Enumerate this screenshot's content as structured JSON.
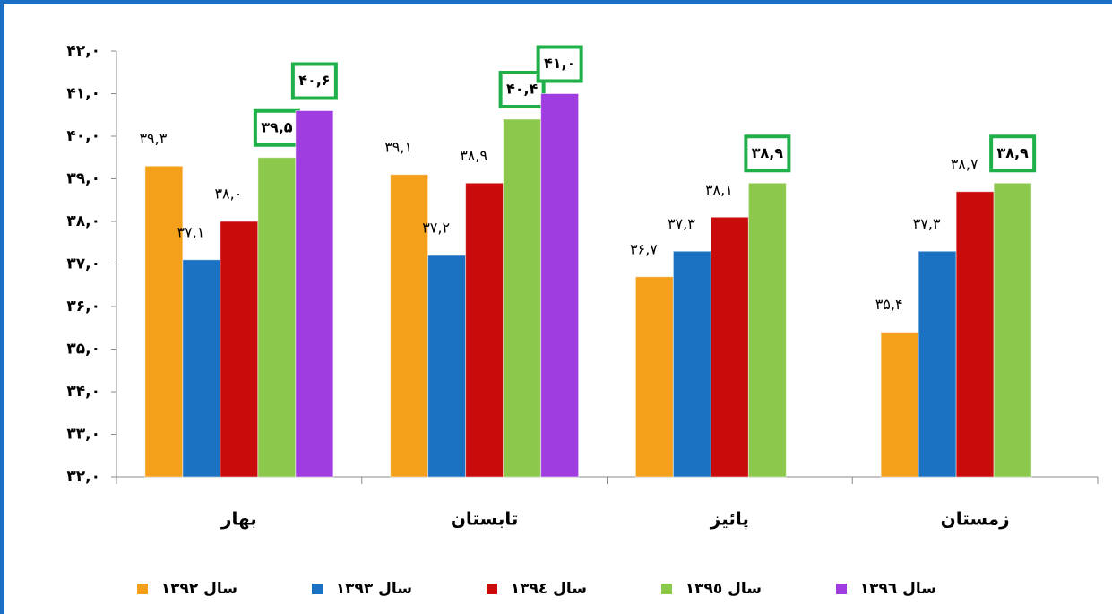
{
  "chart_data": {
    "type": "bar",
    "categories": [
      "بهار",
      "تابستان",
      "پائیز",
      "زمستان"
    ],
    "series": [
      {
        "name": "سال ١٣٩٢",
        "color": "#f5a01a",
        "values": [
          39.3,
          39.1,
          36.7,
          35.4
        ],
        "value_labels": [
          "۳۹,۳",
          "۳۹,۱",
          "۳۶,۷",
          "۳۵,۴"
        ]
      },
      {
        "name": "سال ١٣٩٣",
        "color": "#1b72c2",
        "values": [
          37.1,
          37.2,
          37.3,
          37.3
        ],
        "value_labels": [
          "۳۷,۱",
          "۳۷,۲",
          "۳۷,۳",
          "۳۷,۳"
        ]
      },
      {
        "name": "سال ١٣٩٤",
        "color": "#c90b0b",
        "values": [
          38.0,
          38.9,
          38.1,
          38.7
        ],
        "value_labels": [
          "۳۸,۰",
          "۳۸,۹",
          "۳۸,۱",
          "۳۸,۷"
        ]
      },
      {
        "name": "سال ١٣٩٥",
        "color": "#8cc84b",
        "values": [
          39.5,
          40.4,
          38.9,
          38.9
        ],
        "value_labels": [
          "۳۹,۵",
          "۴۰,۴",
          "۳۸,۹",
          "۳۸,۹"
        ],
        "boxed": true
      },
      {
        "name": "سال ١٣٩٦",
        "color": "#a03de0",
        "values": [
          40.6,
          41.0,
          null,
          null
        ],
        "value_labels": [
          "۴۰,۶",
          "۴۱,۰",
          null,
          null
        ],
        "boxed": true
      }
    ],
    "ylim": [
      32,
      42
    ],
    "yticks": [
      {
        "value": 32,
        "label": "۳۲,۰"
      },
      {
        "value": 33,
        "label": "۳۳,۰"
      },
      {
        "value": 34,
        "label": "۳۴,۰"
      },
      {
        "value": 35,
        "label": "۳۵,۰"
      },
      {
        "value": 36,
        "label": "۳۶,۰"
      },
      {
        "value": 37,
        "label": "۳۷,۰"
      },
      {
        "value": 38,
        "label": "۳۸,۰"
      },
      {
        "value": 39,
        "label": "۳۹,۰"
      },
      {
        "value": 40,
        "label": "۴۰,۰"
      },
      {
        "value": 41,
        "label": "۴۱,۰"
      },
      {
        "value": 42,
        "label": "۴۲,۰"
      }
    ],
    "legend": "bottom"
  }
}
